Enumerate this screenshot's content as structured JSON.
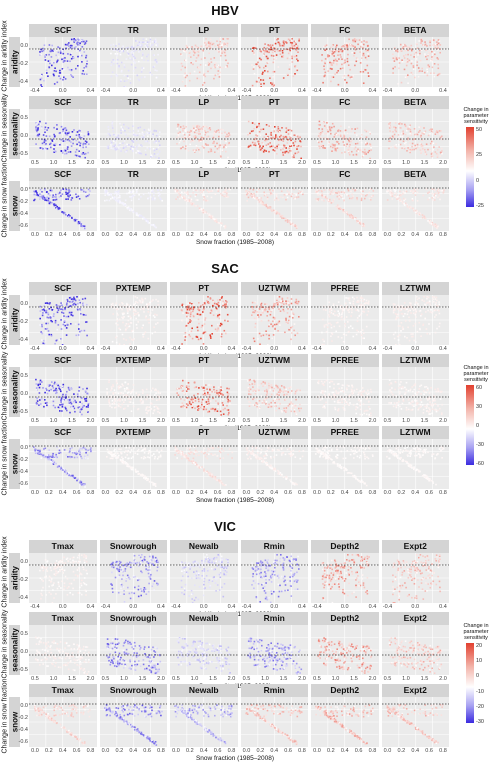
{
  "colors": {
    "negative": "#3b2be0",
    "positive": "#e2402f",
    "neutral": "#ffffff",
    "panel_bg": "#ebebeb",
    "strip_bg": "#d4d4d4"
  },
  "legend_title": "Change in parameter sensitivity",
  "x_axis_titles": {
    "aridity": "Aridity index (1985–2008)",
    "seasonality": "Seasonality (1985–2008)",
    "snow": "Snow fraction (1985–2008)"
  },
  "y_axis_titles": {
    "aridity": "Change in aridity index",
    "seasonality": "Change in seasonality",
    "snow": "Change in snow fraction"
  },
  "row_labels": {
    "aridity": "aridity",
    "seasonality": "seasonality",
    "snow": "snow"
  },
  "x_ticks": {
    "aridity": [
      "-0.4",
      "0.0",
      "0.4"
    ],
    "seasonality": [
      "0.5",
      "1.0",
      "1.5",
      "2.0"
    ],
    "snow": [
      "0.0",
      "0.2",
      "0.4",
      "0.6",
      "0.8"
    ]
  },
  "y_ticks": {
    "aridity": [
      "0.0",
      "-0.2",
      "-0.4"
    ],
    "seasonality": [
      "0.5",
      "0.0",
      "-0.5"
    ],
    "snow": [
      "0.0",
      "-0.2",
      "-0.4",
      "-0.6"
    ]
  },
  "chart_data": [
    {
      "type": "scatter",
      "model": "HBV",
      "parameters": [
        "SCF",
        "TR",
        "LP",
        "PT",
        "FC",
        "BETA"
      ],
      "legend": {
        "min": -25,
        "max": 50,
        "ticks": [
          "50",
          "25",
          "0",
          "-25"
        ]
      },
      "rows": [
        "aridity",
        "seasonality",
        "snow"
      ],
      "strength": {
        "aridity": [
          -1,
          -0.2,
          0.4,
          0.9,
          0.7,
          0.5
        ],
        "seasonality": [
          -1,
          -0.2,
          0.4,
          0.9,
          0.5,
          0.4
        ],
        "snow": [
          -1,
          -0.1,
          0.2,
          0.3,
          0.3,
          0.2
        ]
      }
    },
    {
      "type": "scatter",
      "model": "SAC",
      "parameters": [
        "SCF",
        "PXTEMP",
        "PT",
        "UZTWM",
        "PFREE",
        "LZTWM"
      ],
      "legend": {
        "min": -60,
        "max": 60,
        "ticks": [
          "60",
          "30",
          "0",
          "-30",
          "-60"
        ]
      },
      "rows": [
        "aridity",
        "seasonality",
        "snow"
      ],
      "strength": {
        "aridity": [
          -1,
          0.1,
          0.9,
          0.6,
          0.1,
          0.1
        ],
        "seasonality": [
          -1,
          0.1,
          0.9,
          0.4,
          0.1,
          0.1
        ],
        "snow": [
          -0.7,
          0.05,
          0.2,
          0.1,
          0.05,
          0.05
        ]
      }
    },
    {
      "type": "scatter",
      "model": "VIC",
      "parameters": [
        "Tmax",
        "Snowrough",
        "Newalb",
        "Rmin",
        "Depth2",
        "Expt2"
      ],
      "legend": {
        "min": -30,
        "max": 20,
        "ticks": [
          "20",
          "10",
          "0",
          "-10",
          "-20",
          "-30"
        ]
      },
      "rows": [
        "aridity",
        "seasonality",
        "snow"
      ],
      "strength": {
        "aridity": [
          0.1,
          -0.7,
          -0.3,
          -0.6,
          0.6,
          0.4
        ],
        "seasonality": [
          0.1,
          -0.7,
          -0.3,
          -0.6,
          0.6,
          0.4
        ],
        "snow": [
          0.3,
          -0.7,
          -0.5,
          0.4,
          0.5,
          0.4
        ]
      }
    }
  ]
}
